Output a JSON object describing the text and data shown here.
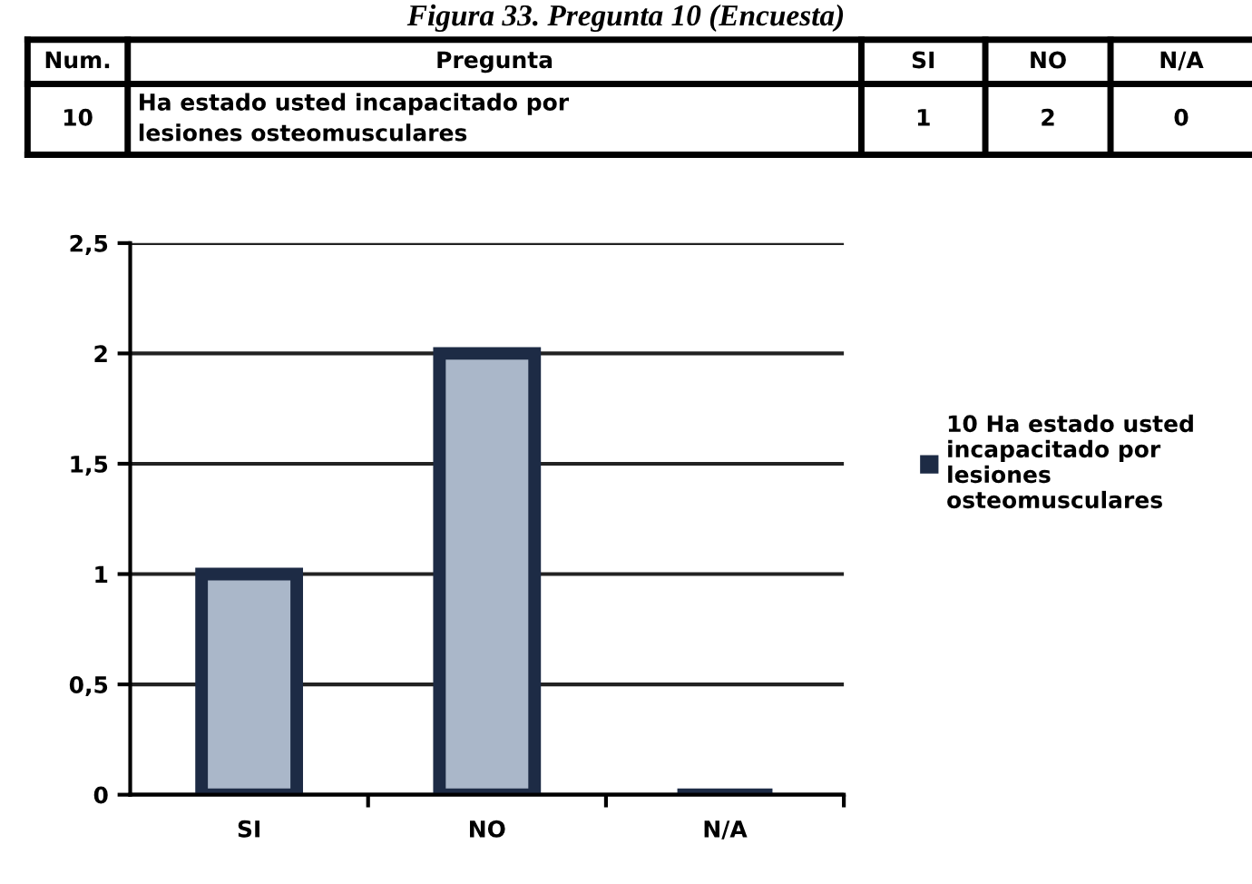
{
  "chart_data": {
    "type": "bar",
    "title": "Figura 33. Pregunta 10 (Encuesta)",
    "categories": [
      "SI",
      "NO",
      "N/A"
    ],
    "series": [
      {
        "name": "10 Ha estado usted incapacitado por lesiones osteomusculares",
        "color": "#1d2b45",
        "values": [
          1,
          2,
          0
        ]
      }
    ],
    "ylim": [
      0,
      2.5
    ],
    "yticks": [
      0,
      {
        "value": 0.5,
        "label": "0,5"
      },
      1,
      {
        "value": 1.5,
        "label": "1,5"
      },
      2,
      {
        "value": 2.5,
        "label": "2,5"
      }
    ],
    "grid": "y",
    "legend": "right",
    "annotations": [
      "Num.",
      "Pregunta",
      "10",
      "Ha estado usted incapacitado por lesiones osteomusculares",
      "1",
      "2",
      "0"
    ]
  }
}
